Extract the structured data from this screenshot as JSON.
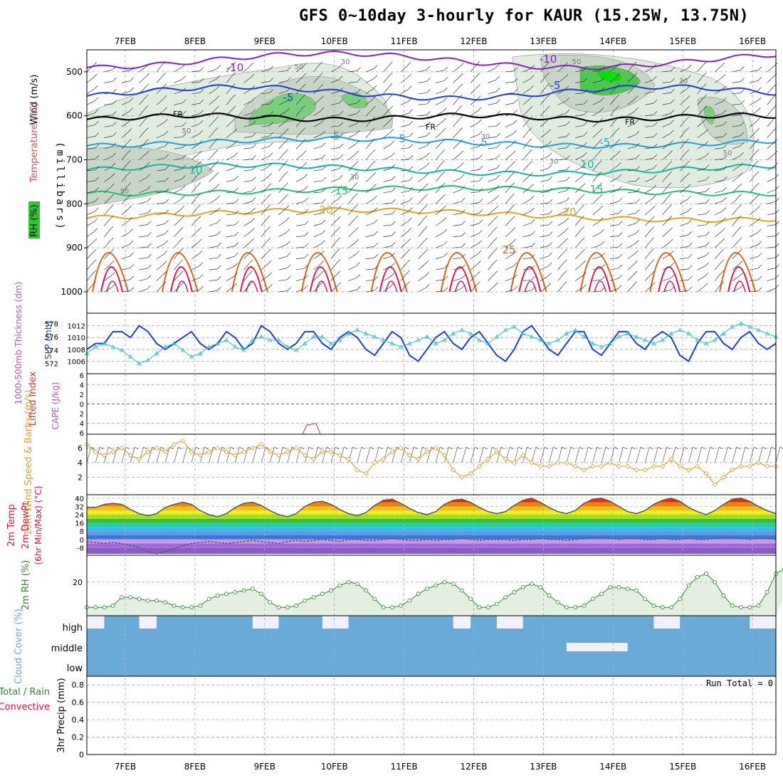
{
  "title": "GFS 0~10day 3-hourly for KAUR (15.25W, 13.75N)",
  "colors": {
    "purple": "#8a1fc4",
    "blue": "#1f3fd6",
    "lightblue": "#1fa0e0",
    "teal": "#10b8a0",
    "green2": "#1fc070",
    "orange": "#e8a020",
    "darkorange": "#e06010",
    "red": "#e01040",
    "magenta": "#d0107a",
    "slp": "#1b3fcf",
    "thk": "#2bbccc",
    "wind10": "#e8a030",
    "rh": "#2a8a2a",
    "cloud": "#6aaad6",
    "cloudgap": "#f2f0f8",
    "lifted": "#e03030"
  },
  "chart_data": [
    {
      "panel": "upper-air",
      "type": "contour",
      "ylabel_wind": "Wind (m/s)",
      "ylabel_temp": "Temperature (°C)",
      "ylabel_rh": "RH (%)",
      "ylabel_pressure": "(millibars)",
      "yticks": [
        "500",
        "600",
        "700",
        "800",
        "900",
        "1000"
      ],
      "ylim": [
        450,
        1000
      ],
      "temperature_labels": [
        "-10",
        "-10",
        "-5",
        "-5",
        "-5",
        "-5",
        "5",
        "5",
        "10",
        "10",
        "15",
        "15",
        "20",
        "20",
        "25"
      ],
      "freezing_labels": [
        "FR",
        "FR",
        "FR"
      ],
      "rh_labels": [
        "50",
        "30",
        "50",
        "30",
        "30",
        "30",
        "50",
        "30",
        "50",
        "50"
      ]
    },
    {
      "panel": "slp-thickness",
      "type": "line",
      "ylabel_thk": "1000-500mb Thickness (dm)",
      "ylabel_slp": "SLP (mb)",
      "thk_ticks": [
        "578",
        "576",
        "574",
        "572"
      ],
      "slp_ticks": [
        "1012",
        "1010",
        "1008",
        "1006"
      ],
      "series": [
        {
          "name": "SLP",
          "values": [
            1008,
            1009,
            1009,
            1011,
            1011,
            1010,
            1012,
            1011,
            1009,
            1008,
            1009,
            1010,
            1011,
            1009,
            1008,
            1009,
            1011,
            1010,
            1008,
            1009,
            1012,
            1011,
            1009,
            1008,
            1009,
            1011,
            1011,
            1009,
            1008,
            1010,
            1011,
            1010,
            1008,
            1007,
            1009,
            1011,
            1010,
            1007,
            1006,
            1008,
            1010,
            1011,
            1009,
            1008,
            1010,
            1011,
            1009,
            1007,
            1006,
            1008,
            1011,
            1012,
            1010,
            1008,
            1007,
            1009,
            1011,
            1011,
            1008,
            1007,
            1009,
            1011,
            1011,
            1009,
            1008,
            1010,
            1011,
            1010,
            1007,
            1006,
            1009,
            1011,
            1011,
            1009,
            1008,
            1010,
            1011,
            1009,
            1008,
            1009
          ]
        },
        {
          "name": "Thickness",
          "values": [
            573.5,
            574.5,
            575,
            574.5,
            574,
            573,
            572,
            572.5,
            573.5,
            574.5,
            575,
            574,
            573,
            573.5,
            574.5,
            575,
            575.5,
            574.5,
            574,
            575.5,
            576,
            575.5,
            575.5,
            574.5,
            574,
            575,
            576,
            576,
            575,
            575.5,
            576.5,
            577,
            576.5,
            576,
            575.5,
            575,
            574.5,
            575,
            575.5,
            576,
            575,
            575.5,
            576.5,
            577,
            576.5,
            575.5,
            575,
            576,
            577,
            577.5,
            576.5,
            576,
            575.5,
            575,
            575.5,
            576.5,
            577,
            576,
            575,
            574.5,
            575,
            576,
            576.5,
            576,
            575.5,
            575,
            575.5,
            576.5,
            577,
            576.5,
            575.5,
            575,
            575.5,
            576.5,
            577.5,
            578,
            577.5,
            577,
            576.5,
            576
          ]
        }
      ]
    },
    {
      "panel": "cape-li",
      "type": "line",
      "ylabel_li": "Lifted Index",
      "ylabel_cape": "CAPE (J/kg)",
      "yticks": [
        "6",
        "4",
        "2",
        "0",
        "2",
        "4",
        "6"
      ],
      "ylim": [
        -6,
        6
      ]
    },
    {
      "panel": "wind10m",
      "type": "line",
      "ylabel": "10m Wind Speed & Barbs (m/s)",
      "yticks": [
        "2",
        "4",
        "6"
      ],
      "ylim": [
        0,
        7.5
      ],
      "values": [
        6.5,
        5.5,
        5,
        5.5,
        6,
        5,
        4.5,
        5.5,
        6,
        5.5,
        6.5,
        7,
        5.5,
        5,
        5.5,
        6,
        5.5,
        5,
        5.5,
        6,
        6.5,
        5.5,
        5,
        5.5,
        6,
        5,
        4.5,
        5.5,
        5.5,
        5,
        4.5,
        3,
        2.5,
        4,
        4.5,
        5.5,
        6,
        5,
        4.5,
        5.5,
        6,
        5,
        3,
        2,
        2.5,
        3.5,
        4.5,
        5.5,
        4.5,
        4,
        5,
        4,
        3.5,
        3.5,
        4,
        4,
        3.5,
        3,
        3.5,
        3.5,
        4,
        3.5,
        3.5,
        3,
        3,
        3.5,
        3.5,
        4.5,
        3.5,
        3,
        3.5,
        2.5,
        1,
        2,
        3,
        3.5,
        3.5,
        4,
        3.5,
        3.5
      ]
    },
    {
      "panel": "temp2m",
      "type": "area",
      "ylabel_temp": "2m Temp",
      "ylabel_dew": "2m DewPt",
      "ylabel_range": "(6hr Min/Max) (°C)",
      "yticks": [
        "40",
        "32",
        "24",
        "16",
        "8",
        "0",
        "-8"
      ],
      "ylim": [
        -14,
        42
      ],
      "temp_values": [
        31,
        31,
        34,
        35,
        34,
        29,
        25,
        23,
        25,
        31,
        34,
        36,
        34,
        28,
        24,
        22,
        25,
        31,
        35,
        36,
        33,
        28,
        24,
        22,
        25,
        32,
        36,
        37,
        34,
        29,
        25,
        23,
        26,
        33,
        38,
        39,
        35,
        30,
        26,
        24,
        27,
        34,
        38,
        39,
        36,
        31,
        27,
        25,
        27,
        33,
        38,
        40,
        36,
        31,
        27,
        25,
        28,
        35,
        39,
        40,
        37,
        32,
        27,
        25,
        28,
        34,
        38,
        40,
        37,
        31,
        27,
        24,
        28,
        34,
        39,
        40,
        37,
        32,
        28,
        25
      ],
      "dew_values": [
        -2,
        -3,
        -4,
        -3,
        -4,
        -6,
        -8,
        -12,
        -14,
        -12,
        -9,
        -6,
        -4,
        -3,
        -2,
        -3,
        -4,
        -3,
        -2,
        -1,
        -2,
        -3,
        -4,
        -2,
        -1,
        -2,
        -1,
        0,
        -1,
        -2,
        0,
        0,
        -1,
        -1,
        0,
        1,
        0,
        -1,
        -1,
        0,
        -1,
        0,
        0,
        1,
        0,
        -1,
        0,
        0,
        0,
        -1,
        0,
        0,
        1,
        0,
        0,
        -1,
        0,
        1,
        2,
        2,
        1,
        0,
        1,
        1,
        0,
        0,
        1,
        0,
        0,
        1,
        0,
        0,
        1,
        2,
        2,
        1,
        0,
        1,
        1,
        0
      ]
    },
    {
      "panel": "rh2m",
      "type": "area",
      "ylabel": "2m RH (%)",
      "yticks": [
        "20"
      ],
      "ylim": [
        0,
        36
      ],
      "values": [
        5,
        5,
        5,
        6,
        11,
        11,
        10,
        9,
        9,
        8,
        6,
        5,
        5,
        6,
        10,
        12,
        13,
        14,
        15,
        16,
        13,
        8,
        5,
        5,
        6,
        9,
        11,
        13,
        15,
        18,
        20,
        19,
        15,
        10,
        5,
        5,
        6,
        9,
        13,
        16,
        18,
        20,
        19,
        15,
        10,
        5,
        5,
        7,
        11,
        14,
        17,
        19,
        17,
        12,
        8,
        5,
        5,
        6,
        10,
        13,
        17,
        17,
        16,
        15,
        10,
        6,
        5,
        5,
        10,
        18,
        23,
        25,
        20,
        12,
        6,
        5,
        5,
        6,
        14,
        25,
        28,
        24
      ]
    },
    {
      "panel": "cloud",
      "type": "bar",
      "ylabel": "Cloud Cover (%)",
      "levels": [
        "high",
        "middle",
        "low"
      ]
    },
    {
      "panel": "precip",
      "type": "bar",
      "ylabel_total": "Total / Rain",
      "ylabel_conv": "Convective",
      "ylabel_precip": "3hr Precip (mm)",
      "yticks": [
        "0.8",
        "0.6",
        "0.4",
        "0.2",
        "0"
      ],
      "ylim": [
        0,
        0.9
      ],
      "run_total": "Run Total = 0"
    },
    {
      "panel": "time-axis",
      "type": "table",
      "x_labels": [
        "7FEB",
        "8FEB",
        "9FEB",
        "10FEB",
        "11FEB",
        "12FEB",
        "13FEB",
        "14FEB",
        "15FEB",
        "16FEB"
      ]
    }
  ]
}
